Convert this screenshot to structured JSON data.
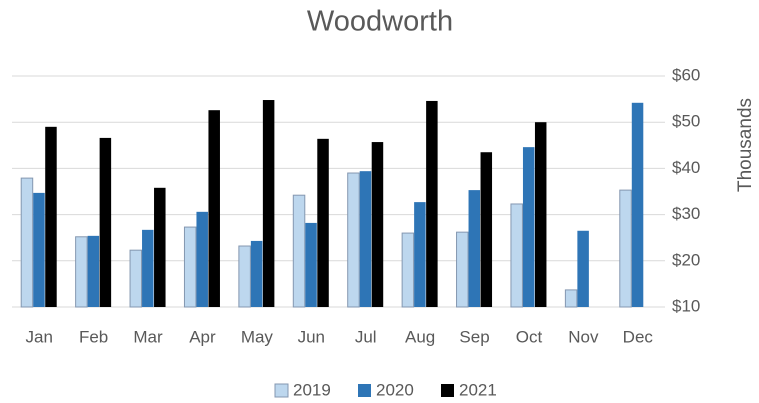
{
  "chart_data": {
    "type": "bar",
    "title": "Woodworth",
    "y_label": "Thousands",
    "categories": [
      "Jan",
      "Feb",
      "Mar",
      "Apr",
      "May",
      "Jun",
      "Jul",
      "Aug",
      "Sep",
      "Oct",
      "Nov",
      "Dec"
    ],
    "series": [
      {
        "name": "2019",
        "color": "#bdd7ee",
        "values": [
          37.9,
          25.2,
          22.3,
          27.3,
          23.2,
          34.2,
          39.0,
          26.0,
          26.2,
          32.3,
          13.7,
          35.3
        ]
      },
      {
        "name": "2020",
        "color": "#2e75b6",
        "values": [
          34.7,
          25.4,
          26.7,
          30.6,
          24.3,
          28.2,
          39.4,
          32.7,
          35.3,
          44.6,
          26.5,
          54.2
        ]
      },
      {
        "name": "2021",
        "color": "#000000",
        "values": [
          49.0,
          46.6,
          35.8,
          52.6,
          54.8,
          46.4,
          45.7,
          54.6,
          43.5,
          50.0,
          null,
          null
        ]
      }
    ],
    "ylim": [
      10,
      60
    ],
    "yticks": [
      {
        "value": 10,
        "label": "$10"
      },
      {
        "value": 20,
        "label": "$20"
      },
      {
        "value": 30,
        "label": "$30"
      },
      {
        "value": 40,
        "label": "$40"
      },
      {
        "value": 50,
        "label": "$50"
      },
      {
        "value": 60,
        "label": "$60"
      }
    ],
    "grid": true,
    "legend": "bottom"
  }
}
